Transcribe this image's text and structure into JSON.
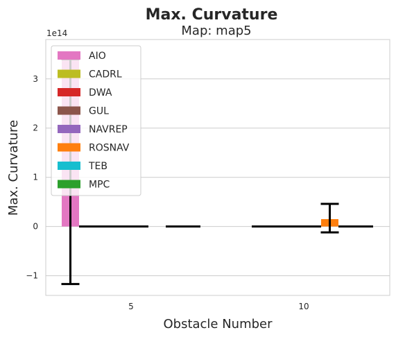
{
  "chart_data": {
    "type": "bar",
    "title": "Max. Curvature",
    "subtitle": "Map: map5",
    "xlabel": "Obstacle Number",
    "ylabel": "Max. Curvature",
    "offset_text": "1e14",
    "categories": [
      "5",
      "10"
    ],
    "ylim": [
      -1.4,
      3.8
    ],
    "yticks": [
      -1,
      0,
      1,
      2,
      3
    ],
    "ytick_labels": [
      "−1",
      "0",
      "1",
      "2",
      "3"
    ],
    "grid": true,
    "legend_position": "top-left",
    "series": [
      {
        "name": "AIO",
        "color": "#e377c2",
        "values": [
          3.4,
          null
        ],
        "err_low": [
          -1.17,
          null
        ],
        "err_high": [
          3.4,
          null
        ]
      },
      {
        "name": "CADRL",
        "color": "#bcbd22",
        "values": [
          0,
          0
        ],
        "err_low": [
          0,
          0
        ],
        "err_high": [
          0,
          0
        ]
      },
      {
        "name": "DWA",
        "color": "#d62728",
        "values": [
          0,
          0
        ],
        "err_low": [
          0,
          0
        ],
        "err_high": [
          0,
          0
        ]
      },
      {
        "name": "GUL",
        "color": "#8c564b",
        "values": [
          0,
          0
        ],
        "err_low": [
          0,
          0
        ],
        "err_high": [
          0,
          0
        ]
      },
      {
        "name": "NAVREP",
        "color": "#9467bd",
        "values": [
          0,
          0
        ],
        "err_low": [
          0,
          0
        ],
        "err_high": [
          0,
          0
        ]
      },
      {
        "name": "ROSNAV",
        "color": "#ff7f0e",
        "values": [
          null,
          0.15
        ],
        "err_low": [
          null,
          -0.12
        ],
        "err_high": [
          null,
          0.46
        ]
      },
      {
        "name": "TEB",
        "color": "#17becf",
        "values": [
          0,
          0
        ],
        "err_low": [
          0,
          0
        ],
        "err_high": [
          0,
          0
        ]
      },
      {
        "name": "MPC",
        "color": "#2ca02c",
        "values": [
          0,
          0
        ],
        "err_low": [
          0,
          0
        ],
        "err_high": [
          0,
          0
        ]
      }
    ]
  }
}
